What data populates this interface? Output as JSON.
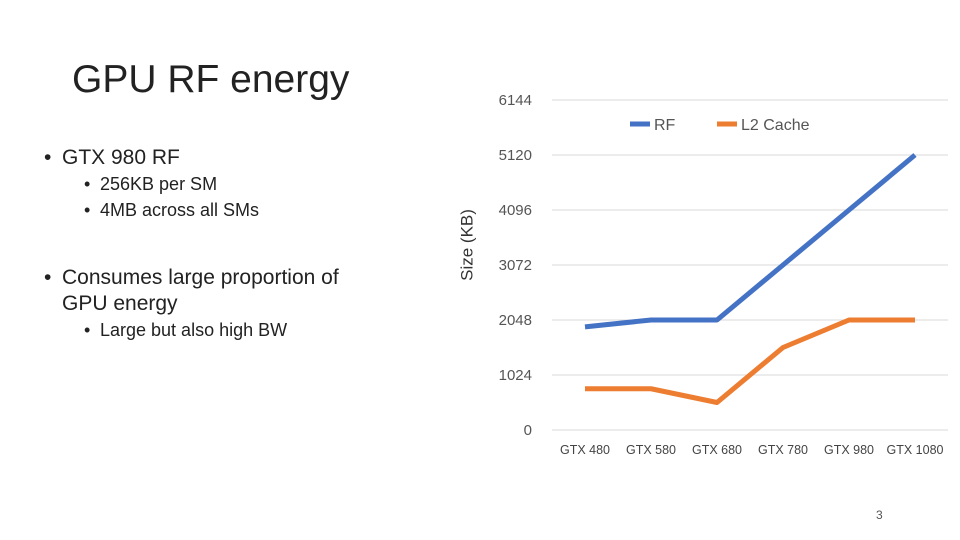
{
  "slide": {
    "title": "GPU RF energy",
    "bullets": {
      "b1": "GTX 980 RF",
      "b1_sub1": "256KB per SM",
      "b1_sub2": "4MB across all SMs",
      "b2_line1": "Consumes large proportion of",
      "b2_line2": "GPU energy",
      "b2_sub1": "Large but also high BW"
    },
    "page_number": "3"
  },
  "colors": {
    "rf": "#4472C4",
    "l2": "#ED7D31",
    "grid": "#D9D9D9"
  },
  "chart_data": {
    "type": "line",
    "title": "",
    "xlabel": "",
    "ylabel": "Size (KB)",
    "ylim": [
      0,
      6144
    ],
    "yticks": [
      0,
      1024,
      2048,
      3072,
      4096,
      5120,
      6144
    ],
    "ytick_labels": [
      "0",
      "1024",
      "2048",
      "3072",
      "4096",
      "5120",
      "6144"
    ],
    "categories": [
      "GTX 480",
      "GTX 580",
      "GTX 680",
      "GTX 780",
      "GTX 980",
      "GTX 1080"
    ],
    "legend_position": "top-right",
    "grid": true,
    "series": [
      {
        "name": "RF",
        "values": [
          1920,
          2048,
          2048,
          3072,
          4096,
          5120
        ]
      },
      {
        "name": "L2 Cache",
        "values": [
          768,
          768,
          512,
          1536,
          2048,
          2048
        ]
      }
    ]
  }
}
